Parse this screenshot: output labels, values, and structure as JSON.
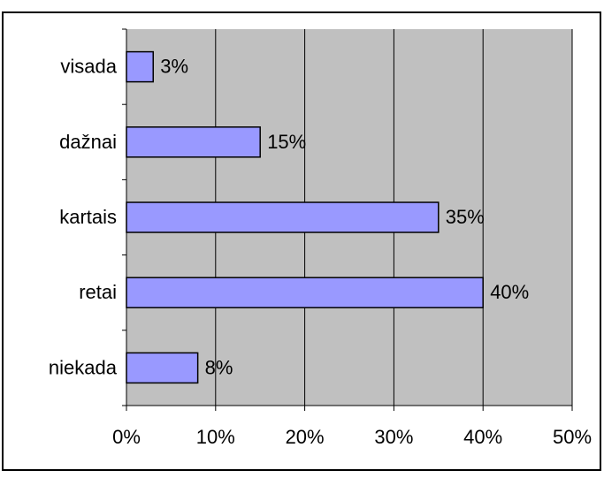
{
  "chart_data": {
    "type": "bar",
    "orientation": "horizontal",
    "categories": [
      "visada",
      "dažnai",
      "kartais",
      "retai",
      "niekada"
    ],
    "values": [
      3,
      15,
      35,
      40,
      8
    ],
    "value_labels": [
      "3%",
      "15%",
      "35%",
      "40%",
      "8%"
    ],
    "xlim": [
      0,
      50
    ],
    "x_ticks": [
      0,
      10,
      20,
      30,
      40,
      50
    ],
    "x_tick_labels": [
      "0%",
      "10%",
      "20%",
      "30%",
      "40%",
      "50%"
    ],
    "grid": true,
    "legend": "none",
    "colors": {
      "plot_background": "#c0c0c0",
      "bar_fill": "#9999ff",
      "bar_stroke": "#000000",
      "gridline": "#000000",
      "frame": "#000000"
    }
  }
}
